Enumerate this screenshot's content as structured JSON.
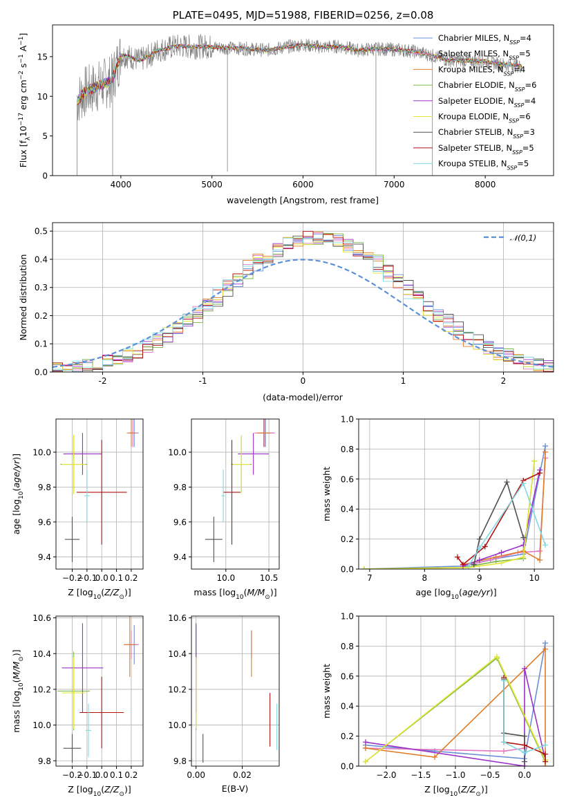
{
  "title": "PLATE=0495, MJD=51988, FIBERID=0256, z=0.08",
  "series": [
    {
      "name": "Chabrier MILES",
      "nssp": "4",
      "color": "#6a8fd8"
    },
    {
      "name": "Salpeter MILES",
      "nssp": "5",
      "color": "#e377c2"
    },
    {
      "name": "Kroupa MILES",
      "nssp": "4",
      "color": "#e07b28"
    },
    {
      "name": "Chabrier ELODIE",
      "nssp": "6",
      "color": "#7ab648"
    },
    {
      "name": "Salpeter ELODIE",
      "nssp": "4",
      "color": "#9b30c8"
    },
    {
      "name": "Kroupa ELODIE",
      "nssp": "6",
      "color": "#e6e635"
    },
    {
      "name": "Chabrier STELIB",
      "nssp": "3",
      "color": "#505050"
    },
    {
      "name": "Salpeter STELIB",
      "nssp": "5",
      "color": "#b01010"
    },
    {
      "name": "Kroupa STELIB",
      "nssp": "5",
      "color": "#80d8e0"
    }
  ],
  "chart_data": [
    {
      "id": "spectrum",
      "type": "line",
      "xlabel": "wavelength [Angstrom, rest frame]",
      "ylabel": "Flux [f_λ10^-17 erg cm^-2 s^-1 A^-1]",
      "xlim": [
        3250,
        8750
      ],
      "ylim": [
        0,
        19
      ],
      "xticks": [
        4000,
        5000,
        6000,
        7000,
        8000
      ],
      "yticks": [
        0,
        5,
        10,
        15
      ],
      "data_color": "#808080",
      "x": [
        3520,
        3600,
        3700,
        3800,
        3900,
        4000,
        4100,
        4200,
        4300,
        4400,
        4500,
        4600,
        4700,
        4800,
        4900,
        5000,
        5200,
        5400,
        5600,
        5800,
        6000,
        6200,
        6400,
        6600,
        6800,
        7000,
        7200,
        7400,
        7600,
        7800,
        8000,
        8200,
        8400
      ],
      "y": [
        9.5,
        10.5,
        11.0,
        11.5,
        12.0,
        15.2,
        15.0,
        14.5,
        15.0,
        15.8,
        16.0,
        16.3,
        16.3,
        16.2,
        16.3,
        16.2,
        16.1,
        16.0,
        15.8,
        16.2,
        16.5,
        16.2,
        16.3,
        15.8,
        16.0,
        15.9,
        15.7,
        15.2,
        14.5,
        14.5,
        14.4,
        14.0,
        13.8
      ],
      "legend": "top-right",
      "grid": false
    },
    {
      "id": "residuals",
      "type": "bar",
      "xlabel": "(data-model)/error",
      "ylabel": "Normed distribution",
      "xlim": [
        -2.5,
        2.5
      ],
      "ylim": [
        0,
        0.53
      ],
      "xticks": [
        -2,
        -1,
        0,
        1,
        2
      ],
      "yticks": [
        0.0,
        0.1,
        0.2,
        0.3,
        0.4,
        0.5
      ],
      "reference": {
        "name": "𝒩(0,1)",
        "color": "#5b8fd6"
      },
      "legend": "top-right",
      "grid": true
    },
    {
      "id": "age_vs_Z",
      "type": "scatter",
      "xlabel": "Z [log10(Z/Z⊙)]",
      "ylabel": "age  [log10(age/yr)]",
      "xlim": [
        -0.31,
        0.28
      ],
      "ylim": [
        9.33,
        10.19
      ],
      "xticks": [
        -0.2,
        -0.1,
        0.0,
        0.1,
        0.2
      ],
      "yticks": [
        9.4,
        9.6,
        9.8,
        10.0
      ],
      "points": [
        {
          "x": 0.22,
          "y": 10.11,
          "ex": 0.03,
          "ey": 0.08
        },
        {
          "x": 0.21,
          "y": 10.11,
          "ex": 0.03,
          "ey": 0.08
        },
        {
          "x": 0.2,
          "y": 10.11,
          "ex": 0.03,
          "ey": 0.08
        },
        {
          "x": -0.19,
          "y": 9.93,
          "ex": 0.09,
          "ey": 0.16
        },
        {
          "x": -0.13,
          "y": 9.99,
          "ex": 0.13,
          "ey": 0.12
        },
        {
          "x": -0.19,
          "y": 9.93,
          "ex": 0.08,
          "ey": 0.17
        },
        {
          "x": -0.2,
          "y": 9.5,
          "ex": 0.05,
          "ey": 0.13
        },
        {
          "x": 0.0,
          "y": 9.77,
          "ex": 0.17,
          "ey": 0.3
        },
        {
          "x": -0.1,
          "y": 9.75,
          "ex": 0.02,
          "ey": 0.15
        }
      ],
      "grid": true
    },
    {
      "id": "age_vs_mass",
      "type": "scatter",
      "xlabel": "mass [log10(M/M⊙)]",
      "ylabel": "",
      "xlim": [
        9.6,
        10.62
      ],
      "ylim": [
        9.33,
        10.19
      ],
      "xticks": [
        10.0,
        10.5
      ],
      "yticks": [
        9.4,
        9.6,
        9.8,
        10.0
      ],
      "points": [
        {
          "x": 10.46,
          "y": 10.11,
          "ex": 0.1,
          "ey": 0.08
        },
        {
          "x": 10.45,
          "y": 10.11,
          "ex": 0.12,
          "ey": 0.08
        },
        {
          "x": 10.44,
          "y": 10.11,
          "ex": 0.08,
          "ey": 0.08
        },
        {
          "x": 10.18,
          "y": 9.93,
          "ex": 0.12,
          "ey": 0.16
        },
        {
          "x": 10.32,
          "y": 9.99,
          "ex": 0.18,
          "ey": 0.12
        },
        {
          "x": 10.18,
          "y": 9.93,
          "ex": 0.1,
          "ey": 0.17
        },
        {
          "x": 9.86,
          "y": 9.5,
          "ex": 0.1,
          "ey": 0.13
        },
        {
          "x": 10.07,
          "y": 9.77,
          "ex": 0.1,
          "ey": 0.3
        },
        {
          "x": 9.97,
          "y": 9.75,
          "ex": 0.02,
          "ey": 0.15
        }
      ],
      "grid": true
    },
    {
      "id": "weight_vs_age",
      "type": "line",
      "xlabel": "age  [log10(age/yr)]",
      "ylabel": "mass weight",
      "xlim": [
        6.8,
        10.35
      ],
      "ylim": [
        0,
        1
      ],
      "xticks": [
        7,
        8,
        9,
        10
      ],
      "yticks": [
        0.0,
        0.2,
        0.4,
        0.6,
        0.8,
        1.0
      ],
      "series": [
        {
          "name": "Chabrier MILES",
          "x": [
            6.9,
            8.7,
            9.3,
            9.8,
            10.2
          ],
          "y": [
            0.0,
            0.02,
            0.07,
            0.1,
            0.82
          ]
        },
        {
          "name": "Salpeter MILES",
          "x": [
            8.7,
            9.2,
            9.7,
            10.1,
            10.2
          ],
          "y": [
            0.02,
            0.06,
            0.11,
            0.12,
            0.74
          ]
        },
        {
          "name": "Kroupa MILES",
          "x": [
            8.7,
            9.3,
            9.8,
            10.1,
            10.2
          ],
          "y": [
            0.03,
            0.08,
            0.12,
            0.06,
            0.78
          ]
        },
        {
          "name": "Chabrier ELODIE",
          "x": [
            6.9,
            8.7,
            9.3,
            9.8,
            10.0
          ],
          "y": [
            0.0,
            0.01,
            0.05,
            0.07,
            0.72
          ]
        },
        {
          "name": "Salpeter ELODIE",
          "x": [
            8.7,
            9.0,
            9.4,
            9.8,
            10.1
          ],
          "y": [
            0.02,
            0.06,
            0.11,
            0.16,
            0.66
          ]
        },
        {
          "name": "Kroupa ELODIE",
          "x": [
            6.9,
            8.8,
            9.4,
            9.8,
            10.0
          ],
          "y": [
            0.0,
            0.01,
            0.04,
            0.08,
            0.72
          ]
        },
        {
          "name": "Chabrier STELIB",
          "x": [
            8.9,
            9.0,
            9.5,
            9.8
          ],
          "y": [
            0.03,
            0.2,
            0.58,
            0.21
          ]
        },
        {
          "name": "Salpeter STELIB",
          "x": [
            8.6,
            8.7,
            9.1,
            9.8,
            10.1
          ],
          "y": [
            0.08,
            0.03,
            0.15,
            0.59,
            0.64
          ]
        },
        {
          "name": "Kroupa STELIB",
          "x": [
            8.8,
            9.0,
            9.8,
            10.2
          ],
          "y": [
            0.02,
            0.14,
            0.57,
            0.16
          ]
        }
      ],
      "grid": true
    },
    {
      "id": "mass_vs_Z",
      "type": "scatter",
      "xlabel": "Z [log10(Z/Z⊙)]",
      "ylabel": "mass [log10(M/M⊙)]",
      "xlim": [
        -0.31,
        0.28
      ],
      "ylim": [
        9.77,
        10.61
      ],
      "xticks": [
        -0.2,
        -0.1,
        0.0,
        0.1,
        0.2
      ],
      "yticks": [
        9.8,
        10.0,
        10.2,
        10.4,
        10.6
      ],
      "points": [
        {
          "x": 0.22,
          "y": 10.45,
          "ex": 0.03,
          "ey": 0.11
        },
        {
          "x": 0.2,
          "y": 10.45,
          "ex": 0.05,
          "ey": 0.08
        },
        {
          "x": 0.19,
          "y": 10.45,
          "ex": 0.04,
          "ey": 0.18
        },
        {
          "x": -0.19,
          "y": 10.19,
          "ex": 0.11,
          "ey": 0.22
        },
        {
          "x": -0.13,
          "y": 10.32,
          "ex": 0.14,
          "ey": 0.25
        },
        {
          "x": -0.19,
          "y": 10.18,
          "ex": 0.08,
          "ey": 0.2
        },
        {
          "x": -0.2,
          "y": 9.87,
          "ex": 0.06,
          "ey": 0.08
        },
        {
          "x": 0.0,
          "y": 10.07,
          "ex": 0.15,
          "ey": 0.2
        },
        {
          "x": -0.09,
          "y": 9.97,
          "ex": 0.02,
          "ey": 0.15
        }
      ],
      "grid": true
    },
    {
      "id": "mass_vs_ebv",
      "type": "scatter",
      "xlabel": "E(B-V)",
      "ylabel": "",
      "xlim": [
        -0.002,
        0.036
      ],
      "ylim": [
        9.77,
        10.61
      ],
      "xticks": [
        0.0,
        0.02
      ],
      "yticks": [
        9.8,
        10.0,
        10.2,
        10.4,
        10.6
      ],
      "points": [
        {
          "x": 0.0,
          "y": 10.45,
          "ey": 0.11
        },
        {
          "x": 0.024,
          "y": 10.45,
          "ey": 0.08
        },
        {
          "x": 0.024,
          "y": 10.4,
          "ey": 0.13
        },
        {
          "x": 0.0,
          "y": 10.19,
          "ey": 0.22
        },
        {
          "x": 0.0,
          "y": 10.32,
          "ey": 0.25
        },
        {
          "x": 0.0,
          "y": 10.18,
          "ey": 0.2
        },
        {
          "x": 0.003,
          "y": 9.87,
          "ey": 0.08
        },
        {
          "x": 0.032,
          "y": 10.03,
          "ey": 0.15
        },
        {
          "x": 0.035,
          "y": 9.99,
          "ey": 0.13
        }
      ],
      "grid": true
    },
    {
      "id": "weight_vs_Z",
      "type": "line",
      "xlabel": "Z [log10(Z/Z⊙)]",
      "ylabel": "mass weight",
      "xlim": [
        -2.4,
        0.42
      ],
      "ylim": [
        0,
        1
      ],
      "xticks": [
        -2.0,
        -1.5,
        -1.0,
        -0.5,
        0.0
      ],
      "yticks": [
        0.0,
        0.2,
        0.4,
        0.6,
        0.8,
        1.0
      ],
      "series": [
        {
          "name": "Chabrier MILES",
          "x": [
            -2.3,
            -1.3,
            0.0,
            0.3
          ],
          "y": [
            0.14,
            0.1,
            0.05,
            0.82
          ]
        },
        {
          "name": "Salpeter MILES",
          "x": [
            -2.3,
            -0.3,
            0.0,
            0.0
          ],
          "y": [
            0.12,
            0.1,
            0.12,
            0.0
          ]
        },
        {
          "name": "Kroupa MILES",
          "x": [
            -2.3,
            -1.3,
            0.3,
            0.3
          ],
          "y": [
            0.12,
            0.06,
            0.78,
            0.0
          ]
        },
        {
          "name": "Chabrier ELODIE",
          "x": [
            -2.3,
            -0.4,
            0.3
          ],
          "y": [
            0.03,
            0.72,
            0.03
          ]
        },
        {
          "name": "Salpeter ELODIE",
          "x": [
            -2.3,
            0.0,
            0.0,
            0.3
          ],
          "y": [
            0.16,
            0.0,
            0.65,
            0.04
          ]
        },
        {
          "name": "Kroupa ELODIE",
          "x": [
            -2.3,
            -0.4,
            0.3
          ],
          "y": [
            0.03,
            0.73,
            0.04
          ]
        },
        {
          "name": "Chabrier STELIB",
          "x": [
            -0.3,
            -0.3,
            0.0,
            0.0
          ],
          "y": [
            0.58,
            0.22,
            0.2,
            0.03
          ]
        },
        {
          "name": "Salpeter STELIB",
          "x": [
            -0.3,
            -0.3,
            0.0,
            0.3,
            0.3
          ],
          "y": [
            0.59,
            0.16,
            0.14,
            0.08,
            0.03
          ]
        },
        {
          "name": "Kroupa STELIB",
          "x": [
            -0.3,
            -0.3,
            0.0,
            0.3
          ],
          "y": [
            0.57,
            0.16,
            0.09,
            0.14
          ]
        }
      ],
      "grid": true
    }
  ]
}
